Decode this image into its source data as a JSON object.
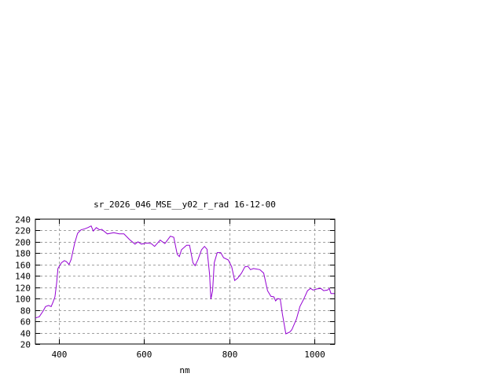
{
  "chart_data": {
    "type": "line",
    "title": "sr_2026_046_MSE__y02_r_rad 16-12-00",
    "xlabel": "nm",
    "ylabel": "",
    "xlim": [
      345,
      1048
    ],
    "ylim": [
      20,
      240
    ],
    "xticks": [
      400,
      600,
      800,
      1000
    ],
    "yticks": [
      20,
      40,
      60,
      80,
      100,
      120,
      140,
      160,
      180,
      200,
      220,
      240
    ],
    "grid": true,
    "line_color": "#9400d3",
    "series": [
      {
        "x": [
          345,
          354,
          363,
          369,
          376,
          382,
          387,
          391,
          395,
          398,
          406,
          413,
          418,
          424,
          429,
          437,
          444,
          452,
          461,
          468,
          476,
          481,
          488,
          496,
          501,
          514,
          529,
          542,
          553,
          566,
          579,
          586,
          594,
          607,
          617,
          625,
          638,
          649,
          662,
          670,
          678,
          683,
          688,
          700,
          707,
          715,
          720,
          727,
          735,
          742,
          748,
          754,
          757,
          761,
          765,
          772,
          780,
          787,
          798,
          806,
          813,
          820,
          829,
          837,
          844,
          850,
          857,
          872,
          881,
          890,
          898,
          905,
          909,
          914,
          920,
          925,
          933,
          942,
          947,
          958,
          966,
          975,
          984,
          991,
          997,
          1006,
          1015,
          1022,
          1031,
          1035,
          1039,
          1047
        ],
        "y": [
          66,
          68,
          78,
          86,
          88,
          86,
          95,
          103,
          128,
          153,
          163,
          167,
          165,
          160,
          169,
          197,
          215,
          221,
          223,
          225,
          228,
          219,
          225,
          221,
          222,
          214,
          216,
          214,
          214,
          204,
          196,
          200,
          196,
          198,
          197,
          192,
          203,
          197,
          210,
          208,
          178,
          174,
          186,
          194,
          194,
          163,
          158,
          169,
          186,
          192,
          187,
          142,
          99,
          114,
          163,
          181,
          181,
          172,
          168,
          156,
          132,
          136,
          145,
          156,
          157,
          151,
          153,
          151,
          145,
          114,
          104,
          103,
          96,
          100,
          99,
          73,
          38,
          41,
          45,
          64,
          86,
          99,
          114,
          118,
          115,
          117,
          118,
          114,
          115,
          118,
          109,
          109
        ]
      }
    ]
  }
}
